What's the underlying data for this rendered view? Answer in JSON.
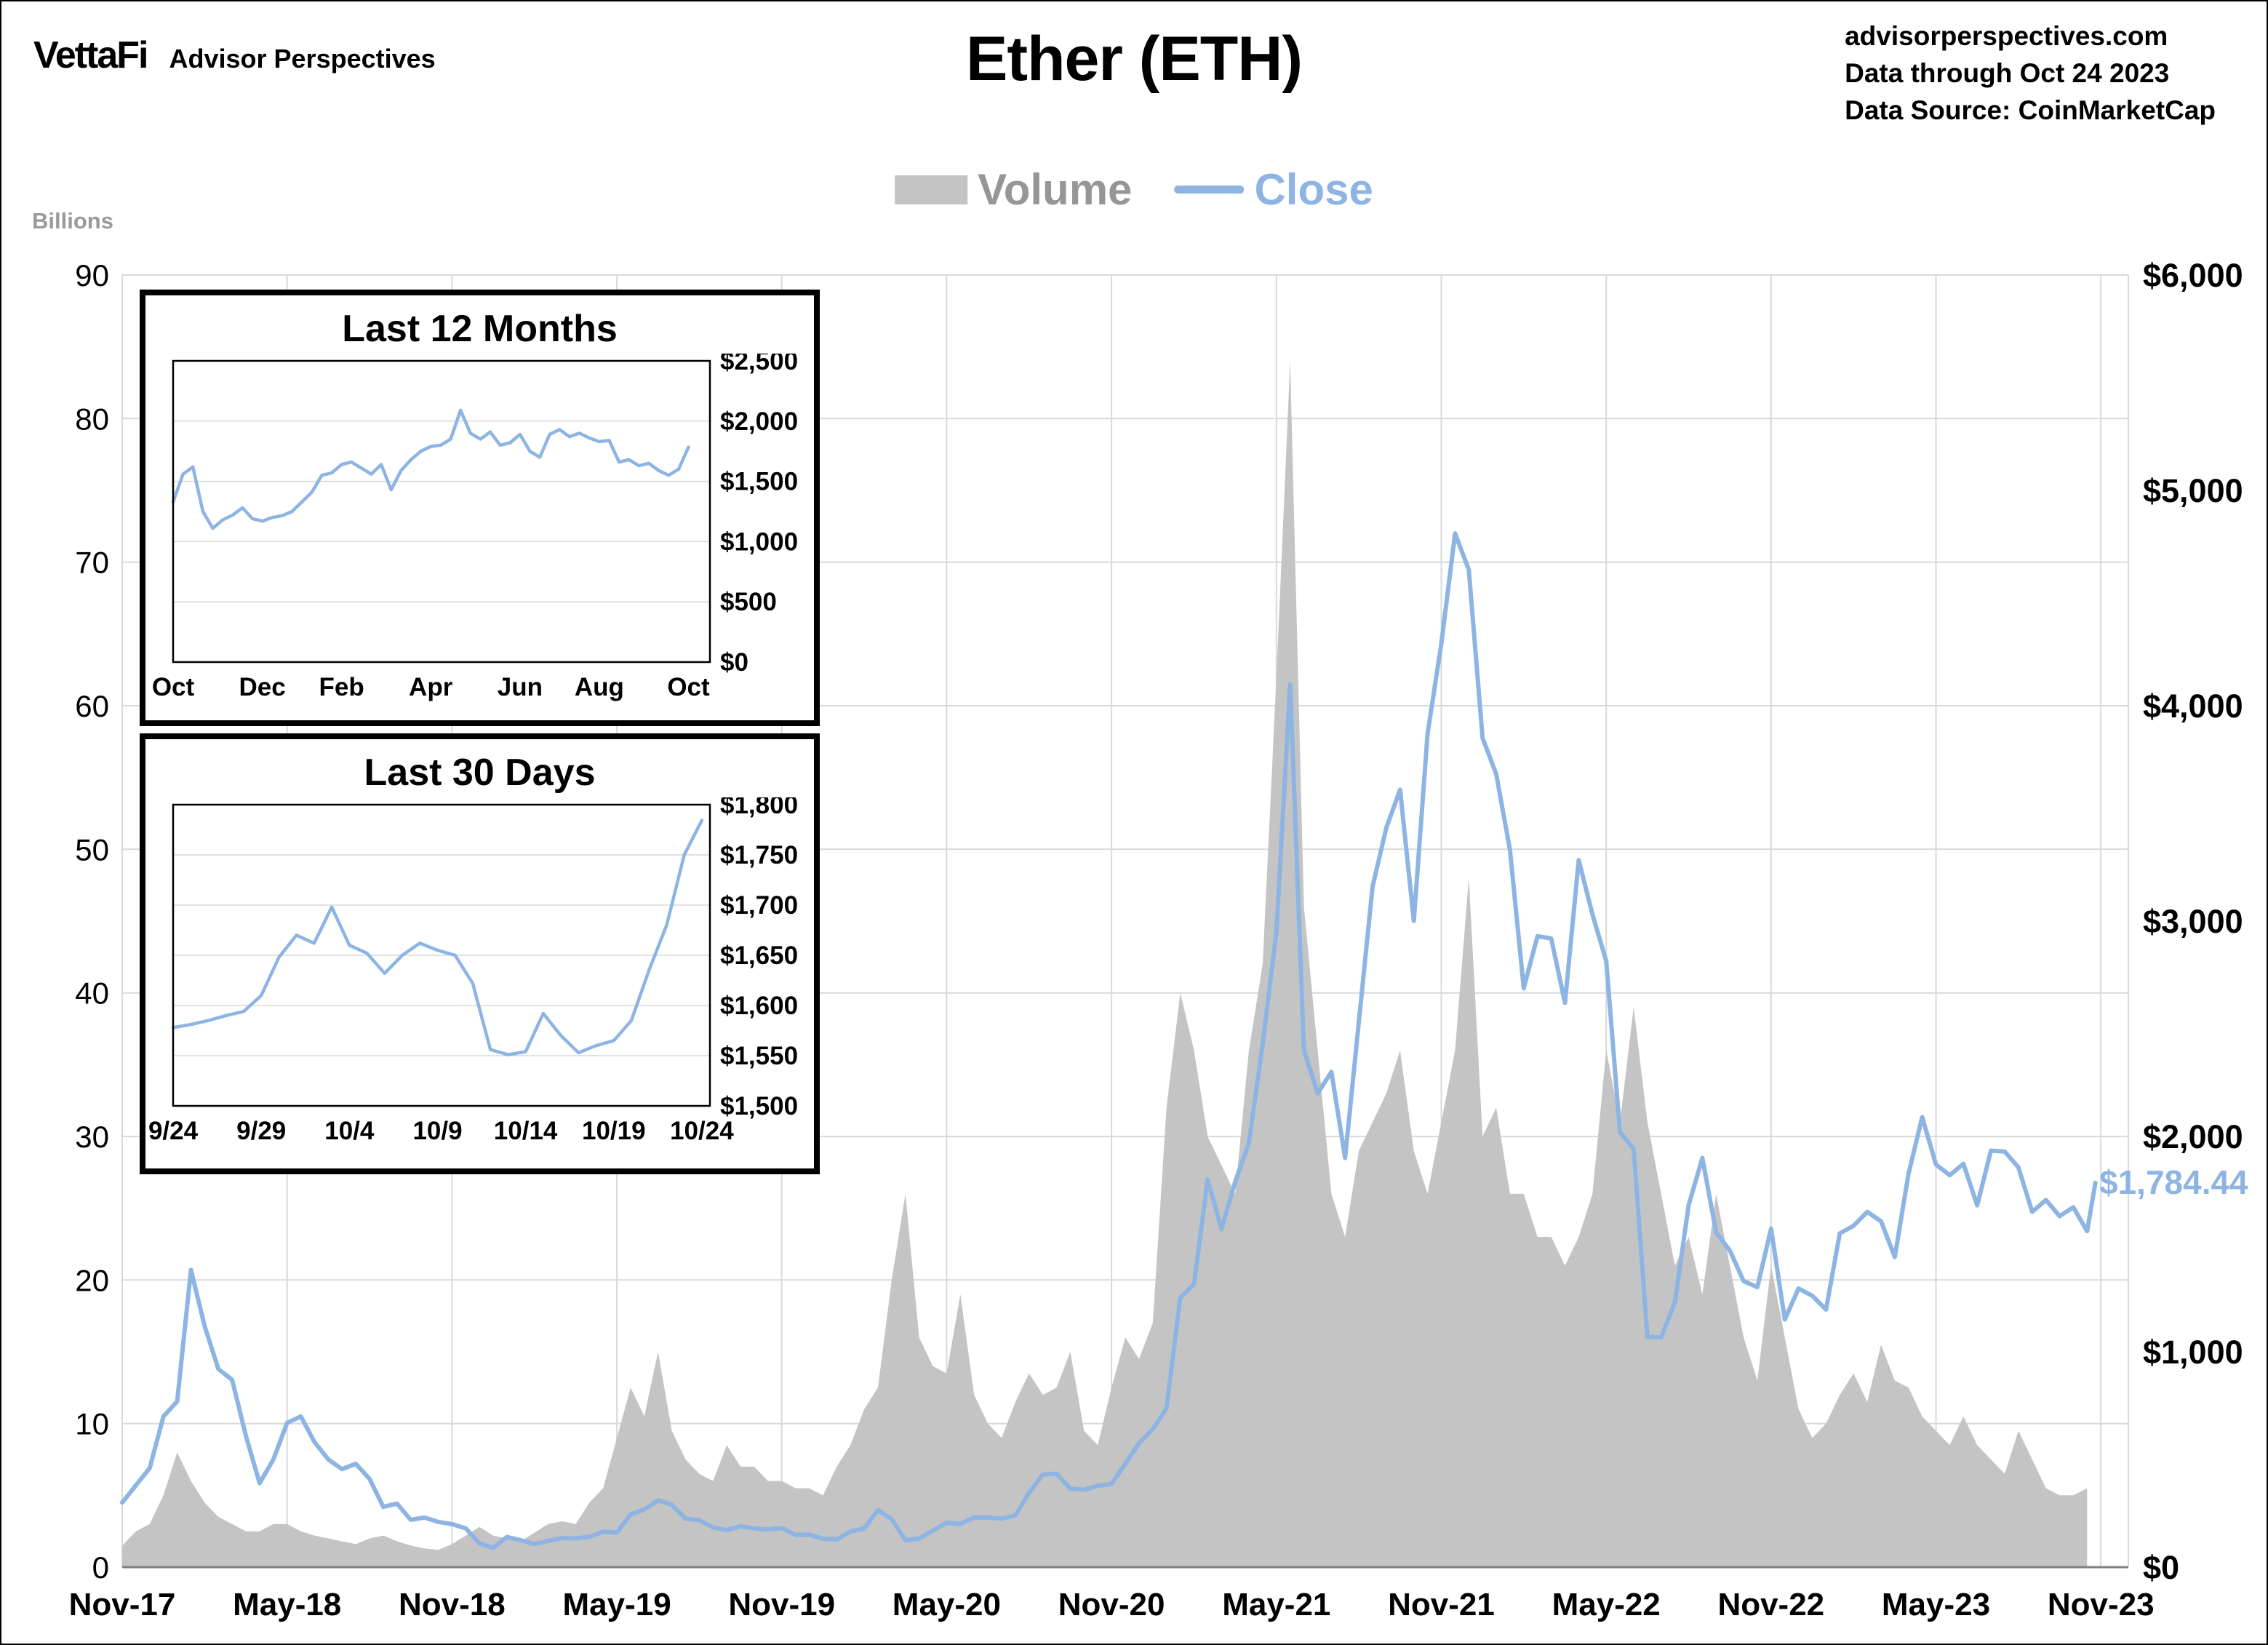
{
  "header": {
    "logo": "VettaFi",
    "logo_sub": "Advisor Perspectives",
    "title": "Ether (ETH)",
    "info_lines": [
      "advisorperspectives.com",
      "Data through Oct 24 2023",
      "Data Source: CoinMarketCap"
    ]
  },
  "colors": {
    "close": "#8DB4E2",
    "volume": "#C4C4C4",
    "grid": "#D9D9D9",
    "axis_line": "#808080",
    "volume_legend_text": "#969696"
  },
  "chart_data": [
    {
      "id": "main",
      "type": "line+area",
      "title": "Ether (ETH)",
      "x_unit": "months since Nov 2017, semi-monthly samples",
      "x_ticks": [
        {
          "t": 0,
          "label": "Nov-17"
        },
        {
          "t": 6,
          "label": "May-18"
        },
        {
          "t": 12,
          "label": "Nov-18"
        },
        {
          "t": 18,
          "label": "May-19"
        },
        {
          "t": 24,
          "label": "Nov-19"
        },
        {
          "t": 30,
          "label": "May-20"
        },
        {
          "t": 36,
          "label": "Nov-20"
        },
        {
          "t": 42,
          "label": "May-21"
        },
        {
          "t": 48,
          "label": "Nov-21"
        },
        {
          "t": 54,
          "label": "May-22"
        },
        {
          "t": 60,
          "label": "Nov-22"
        },
        {
          "t": 66,
          "label": "May-23"
        },
        {
          "t": 72,
          "label": "Nov-23"
        }
      ],
      "left_axis": {
        "label": "Billions",
        "range": [
          0,
          90
        ],
        "ticks": [
          0,
          10,
          20,
          30,
          40,
          50,
          60,
          70,
          80,
          90
        ]
      },
      "right_axis": {
        "range": [
          0,
          6000
        ],
        "ticks": [
          {
            "v": 6000,
            "label": "$6,000"
          },
          {
            "v": 5000,
            "label": "$5,000"
          },
          {
            "v": 4000,
            "label": "$4,000"
          },
          {
            "v": 3000,
            "label": "$3,000"
          },
          {
            "v": 2000,
            "label": "$2,000"
          },
          {
            "v": 1000,
            "label": "$1,000"
          },
          {
            "v": 0,
            "label": "$0"
          }
        ]
      },
      "last_value_label": "$1,784.44",
      "series": [
        {
          "name": "Volume",
          "type": "area",
          "axis": "left",
          "unit": "billions USD",
          "t0": 0,
          "dt": 0.5,
          "values": [
            1.5,
            2.5,
            3,
            5,
            8,
            6,
            4.5,
            3.5,
            3,
            2.5,
            2.5,
            3,
            3,
            2.5,
            2.2,
            2,
            1.8,
            1.6,
            2,
            2.2,
            1.8,
            1.5,
            1.3,
            1.2,
            1.6,
            2.2,
            2.8,
            2.2,
            2,
            1.8,
            2.4,
            3,
            3.2,
            3,
            4.5,
            5.5,
            9,
            12.5,
            10.5,
            15,
            9.5,
            7.5,
            6.5,
            6,
            8.5,
            7,
            7,
            6,
            6,
            5.5,
            5.5,
            5,
            7,
            8.5,
            11,
            12.5,
            20,
            26,
            16,
            14,
            13.5,
            19,
            12,
            10,
            9,
            11.5,
            13.5,
            12,
            12.5,
            15,
            9.5,
            8.5,
            12.5,
            16,
            14.5,
            17,
            32,
            40,
            36,
            30,
            28,
            26,
            36,
            42,
            62,
            84,
            46,
            36,
            26,
            23,
            29,
            31,
            33,
            36,
            29,
            26,
            31,
            36,
            48,
            30,
            32,
            26,
            26,
            23,
            23,
            21,
            23,
            26,
            36,
            31,
            39,
            31,
            26,
            21,
            23,
            19,
            26,
            21,
            16,
            13,
            21,
            16,
            11,
            9,
            10,
            12,
            13.5,
            11.5,
            15.5,
            13,
            12.5,
            10.5,
            9.5,
            8.5,
            10.5,
            8.5,
            7.5,
            6.5,
            9.5,
            7.5,
            5.5,
            5,
            5,
            5.5
          ]
        },
        {
          "name": "Close",
          "type": "line",
          "axis": "right",
          "unit": "USD",
          "t0": 0,
          "dt": 0.5,
          "values": [
            300,
            380,
            460,
            700,
            770,
            1380,
            1120,
            920,
            870,
            610,
            390,
            500,
            670,
            700,
            580,
            500,
            455,
            480,
            410,
            280,
            295,
            220,
            230,
            210,
            200,
            180,
            110,
            90,
            140,
            125,
            107,
            122,
            135,
            133,
            141,
            165,
            160,
            245,
            268,
            310,
            290,
            225,
            218,
            185,
            172,
            190,
            180,
            175,
            182,
            150,
            151,
            132,
            129,
            165,
            180,
            265,
            223,
            125,
            133,
            170,
            206,
            200,
            231,
            230,
            226,
            240,
            346,
            430,
            434,
            365,
            359,
            378,
            386,
            480,
            576,
            640,
            737,
            1250,
            1314,
            1800,
            1570,
            1790,
            1970,
            2430,
            2950,
            4100,
            2400,
            2200,
            2300,
            1900,
            2532,
            3160,
            3433,
            3610,
            3001,
            3870,
            4288,
            4800,
            4631,
            3850,
            3682,
            3330,
            2688,
            2930,
            2919,
            2620,
            3283,
            3030,
            2815,
            2020,
            1942,
            1070,
            1067,
            1230,
            1681,
            1900,
            1554,
            1470,
            1328,
            1300,
            1572,
            1150,
            1294,
            1260,
            1196,
            1550,
            1585,
            1650,
            1606,
            1440,
            1827,
            2090,
            1870,
            1820,
            1873,
            1680,
            1934,
            1930,
            1856,
            1650,
            1705,
            1630,
            1671,
            1560
          ],
          "final_t": 71.8,
          "final_v": 1784.44
        }
      ]
    },
    {
      "id": "last12",
      "type": "line",
      "title": "Last 12 Months",
      "x_unit": "weekly closes, Oct 2022 - Oct 2023",
      "range": [
        0,
        2500
      ],
      "values": [
        1330,
        1560,
        1620,
        1250,
        1110,
        1180,
        1220,
        1280,
        1190,
        1170,
        1200,
        1215,
        1250,
        1330,
        1410,
        1550,
        1570,
        1640,
        1660,
        1610,
        1560,
        1640,
        1430,
        1590,
        1680,
        1750,
        1790,
        1800,
        1850,
        2090,
        1900,
        1850,
        1910,
        1800,
        1820,
        1890,
        1750,
        1700,
        1890,
        1930,
        1870,
        1900,
        1860,
        1830,
        1840,
        1660,
        1680,
        1630,
        1650,
        1590,
        1550,
        1600,
        1784
      ],
      "y_ticks": [
        {
          "v": 2500,
          "label": "$2,500"
        },
        {
          "v": 2000,
          "label": "$2,000"
        },
        {
          "v": 1500,
          "label": "$1,500"
        },
        {
          "v": 1000,
          "label": "$1,000"
        },
        {
          "v": 500,
          "label": "$500"
        },
        {
          "v": 0,
          "label": "$0"
        }
      ],
      "x_ticks": [
        {
          "pos": 0,
          "label": "Oct"
        },
        {
          "pos": 9,
          "label": "Dec"
        },
        {
          "pos": 17,
          "label": "Feb"
        },
        {
          "pos": 26,
          "label": "Apr"
        },
        {
          "pos": 35,
          "label": "Jun"
        },
        {
          "pos": 43,
          "label": "Aug"
        },
        {
          "pos": 52,
          "label": "Oct"
        }
      ]
    },
    {
      "id": "last30",
      "type": "line",
      "title": "Last 30 Days",
      "x_unit": "daily closes, 9/24/2023 - 10/24/2023",
      "range": [
        1500,
        1800
      ],
      "values": [
        1578,
        1581,
        1585,
        1590,
        1594,
        1610,
        1648,
        1670,
        1662,
        1698,
        1660,
        1652,
        1632,
        1650,
        1662,
        1655,
        1650,
        1622,
        1556,
        1551,
        1554,
        1592,
        1570,
        1553,
        1560,
        1565,
        1585,
        1635,
        1680,
        1750,
        1784.44
      ],
      "y_ticks": [
        {
          "v": 1800,
          "label": "$1,800"
        },
        {
          "v": 1750,
          "label": "$1,750"
        },
        {
          "v": 1700,
          "label": "$1,700"
        },
        {
          "v": 1650,
          "label": "$1,650"
        },
        {
          "v": 1600,
          "label": "$1,600"
        },
        {
          "v": 1550,
          "label": "$1,550"
        },
        {
          "v": 1500,
          "label": "$1,500"
        }
      ],
      "x_ticks": [
        {
          "pos": 0,
          "label": "9/24"
        },
        {
          "pos": 5,
          "label": "9/29"
        },
        {
          "pos": 10,
          "label": "10/4"
        },
        {
          "pos": 15,
          "label": "10/9"
        },
        {
          "pos": 20,
          "label": "10/14"
        },
        {
          "pos": 25,
          "label": "10/19"
        },
        {
          "pos": 30,
          "label": "10/24"
        }
      ]
    }
  ]
}
